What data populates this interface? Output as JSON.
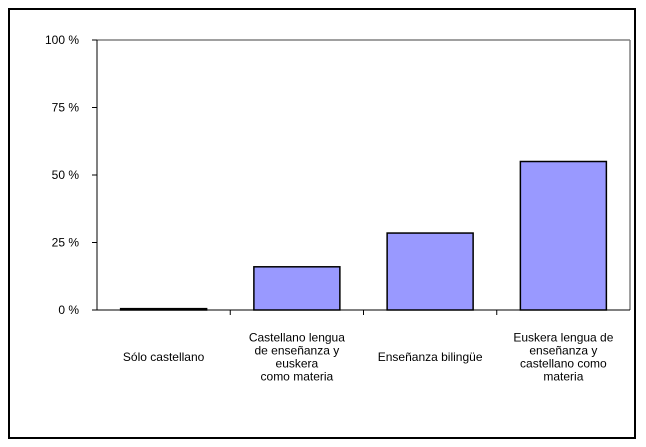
{
  "chart_data": {
    "type": "bar",
    "title": "",
    "xlabel": "",
    "ylabel": "",
    "categories": [
      [
        "Sólo castellano"
      ],
      [
        "Castellano lengua",
        "de enseñanza y",
        "euskera",
        "como materia"
      ],
      [
        "Enseñanza bilingüe"
      ],
      [
        "Euskera lengua de",
        "enseñanza y",
        "castellano como",
        "materia"
      ]
    ],
    "values": [
      0.5,
      16,
      28.5,
      55
    ],
    "ylim": [
      0,
      100
    ],
    "yticks": [
      0,
      25,
      50,
      75,
      100
    ],
    "ytick_labels": [
      "0 %",
      "25 %",
      "50 %",
      "75 %",
      "100 %"
    ],
    "bar_color": "#9999ff",
    "bar_edge_color": "#000000",
    "gridlines": false,
    "legend": "none"
  }
}
